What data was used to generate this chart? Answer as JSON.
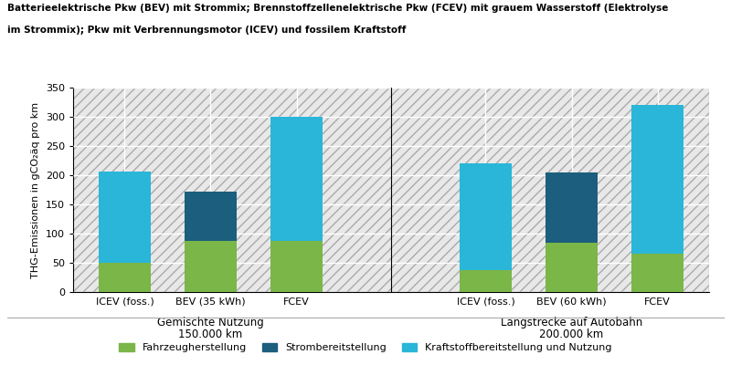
{
  "title_line1": "Batterieelektrische Pkw (BEV) mit Strommix; Brennstoffzellenelektrische Pkw (FCEV) mit grauem Wasserstoff (Elektrolyse",
  "title_line2": "im Strommix); Pkw mit Verbrennungsmotor (ICEV) und fossilem Kraftstoff",
  "ylabel": "THG-Emissionen in gCO₂äq pro km",
  "ylim": [
    0,
    350
  ],
  "yticks": [
    0,
    50,
    100,
    150,
    200,
    250,
    300,
    350
  ],
  "group1_label_line1": "Gemischte Nutzung",
  "group1_label_line2": "150.000 km",
  "group2_label_line1": "Langstrecke auf Autobahn",
  "group2_label_line2": "200.000 km",
  "categories_g1": [
    "ICEV (foss.)",
    "BEV (35 kWh)",
    "FCEV"
  ],
  "categories_g2": [
    "ICEV (foss.)",
    "BEV (60 kWh)",
    "FCEV"
  ],
  "fahrzeug_g1": [
    50,
    87,
    87
  ],
  "strom_g1": [
    0,
    85,
    0
  ],
  "kraftstoff_g1": [
    157,
    0,
    213
  ],
  "fahrzeug_g2": [
    38,
    85,
    65
  ],
  "strom_g2": [
    0,
    120,
    0
  ],
  "kraftstoff_g2": [
    182,
    0,
    255
  ],
  "color_fahrzeug": "#7ab648",
  "color_strom": "#1b5e7d",
  "color_kraftstoff": "#29b6d8",
  "legend_labels": [
    "Fahrzeugherstellung",
    "Strombereitstellung",
    "Kraftstoffbereitstellung und Nutzung"
  ],
  "bar_width": 0.6,
  "background_color": "#ffffff",
  "grid_color": "#d8d8d8"
}
